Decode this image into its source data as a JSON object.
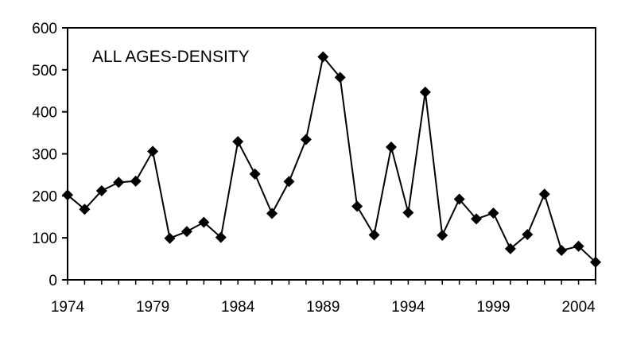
{
  "chart_data": {
    "type": "line",
    "title": "ALL AGES-DENSITY",
    "xlabel": "",
    "ylabel": "",
    "x": [
      1974,
      1975,
      1976,
      1977,
      1978,
      1979,
      1980,
      1981,
      1982,
      1983,
      1984,
      1985,
      1986,
      1987,
      1988,
      1989,
      1990,
      1991,
      1992,
      1993,
      1994,
      1995,
      1996,
      1997,
      1998,
      1999,
      2000,
      2001,
      2002,
      2003,
      2004,
      2005
    ],
    "series": [
      {
        "name": "",
        "values": [
          202,
          168,
          212,
          232,
          235,
          306,
          99,
          115,
          137,
          101,
          329,
          252,
          158,
          234,
          334,
          531,
          482,
          175,
          107,
          316,
          160,
          447,
          106,
          192,
          145,
          159,
          74,
          108,
          204,
          70,
          80,
          42
        ]
      }
    ],
    "xlim": [
      1974,
      2005
    ],
    "ylim": [
      0,
      600
    ],
    "xticks": [
      1974,
      1979,
      1984,
      1989,
      1994,
      1999,
      2004
    ],
    "yticks": [
      0,
      100,
      200,
      300,
      400,
      500,
      600
    ],
    "grid": false,
    "legend": "none",
    "marker": "diamond",
    "line_color": "#000000",
    "marker_color": "#000000"
  }
}
